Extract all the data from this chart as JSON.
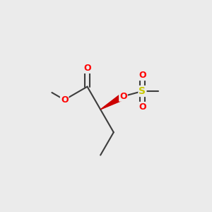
{
  "bg_color": "#ebebeb",
  "bond_color": "#3d3d3d",
  "oxygen_color": "#ff0000",
  "sulfur_color": "#c8c800",
  "lw": 1.5,
  "wedge_color": "#cc0000",
  "fs": 9,
  "fig_size": [
    3.0,
    3.0
  ],
  "dpi": 100,
  "xlim": [
    0.0,
    3.0
  ],
  "ylim": [
    0.2,
    2.8
  ]
}
